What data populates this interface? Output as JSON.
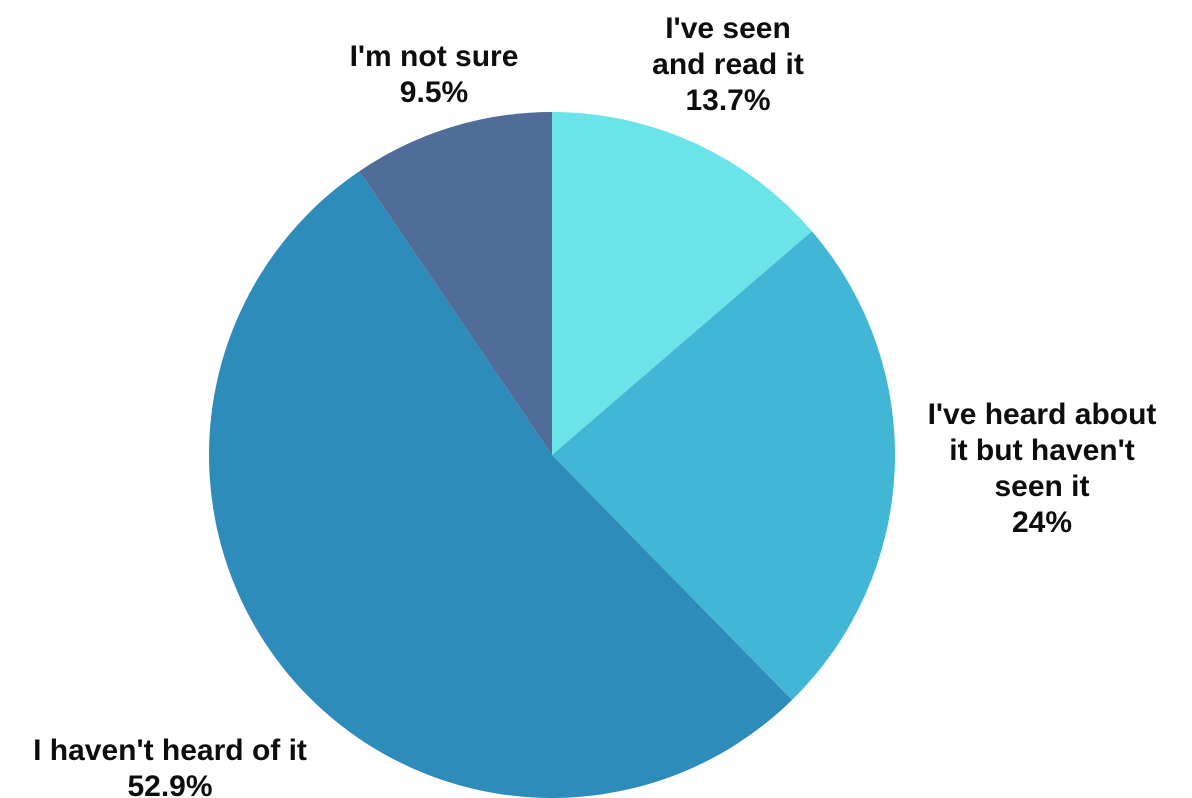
{
  "chart_data": {
    "type": "pie",
    "start": "top",
    "direction": "clockwise",
    "slices": [
      {
        "label": [
          "I've seen",
          "and read it"
        ],
        "value": 13.7,
        "value_label": "13.7%",
        "color": "#6ae4e8"
      },
      {
        "label": [
          "I've heard about",
          "it but haven't",
          "seen it"
        ],
        "value": 24,
        "value_label": "24%",
        "color": "#42b7d5"
      },
      {
        "label": [
          "I haven't heard of it"
        ],
        "value": 52.9,
        "value_label": "52.9%",
        "color": "#2e8cba"
      },
      {
        "label": [
          "I'm not sure"
        ],
        "value": 9.5,
        "value_label": "9.5%",
        "color": "#4f6d98"
      }
    ]
  }
}
